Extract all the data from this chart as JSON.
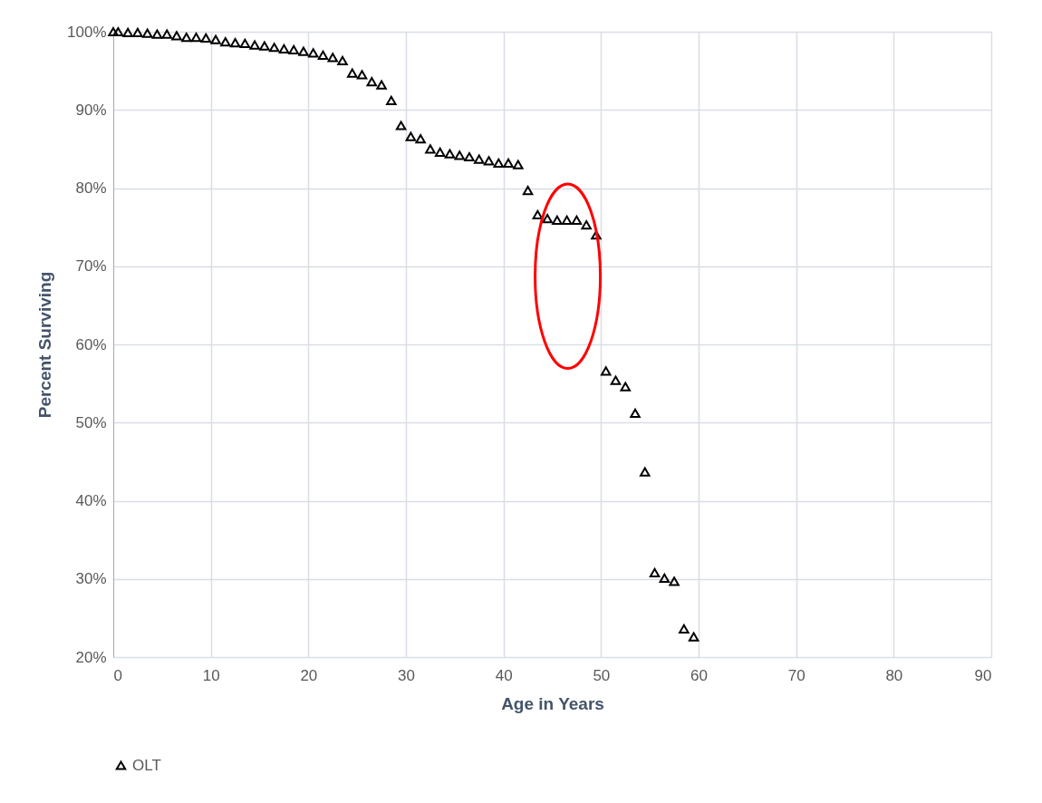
{
  "chart_data": {
    "type": "scatter",
    "xlabel": "Age in Years",
    "ylabel": "Percent Surviving",
    "x": [
      0,
      0.5,
      1.5,
      2.5,
      3.5,
      4.5,
      5.5,
      6.5,
      7.5,
      8.5,
      9.5,
      10.5,
      11.5,
      12.5,
      13.5,
      14.5,
      15.5,
      16.5,
      17.5,
      18.5,
      19.5,
      20.5,
      21.5,
      22.5,
      23.5,
      24.5,
      25.5,
      26.5,
      27.5,
      28.5,
      29.5,
      30.5,
      31.5,
      32.5,
      33.5,
      34.5,
      35.5,
      36.5,
      37.5,
      38.5,
      39.5,
      40.5,
      41.5,
      42.5,
      43.5,
      44.5,
      45.5,
      46.5,
      47.5,
      48.5,
      49.5,
      50.5,
      51.5,
      52.5,
      53.5,
      54.5,
      55.5,
      56.5,
      57.5,
      58.5,
      59.5
    ],
    "series": [
      {
        "name": "OLT",
        "color": "#000000",
        "values": [
          100,
          100,
          99.9,
          99.9,
          99.8,
          99.7,
          99.7,
          99.5,
          99.3,
          99.3,
          99.2,
          99.0,
          98.7,
          98.6,
          98.5,
          98.3,
          98.2,
          98.0,
          97.8,
          97.7,
          97.5,
          97.3,
          97.0,
          96.7,
          96.3,
          94.7,
          94.5,
          93.6,
          93.2,
          91.2,
          88.0,
          86.6,
          86.3,
          85.0,
          84.6,
          84.4,
          84.2,
          84.0,
          83.7,
          83.5,
          83.2,
          83.2,
          83.0,
          79.7,
          76.6,
          76.1,
          75.9,
          75.9,
          75.9,
          75.3,
          74.0,
          56.6,
          55.4,
          54.6,
          51.2,
          43.7,
          30.8,
          30.1,
          29.7,
          23.6,
          22.6
        ]
      }
    ],
    "xlim": [
      0,
      90
    ],
    "xticks": [
      0,
      10,
      20,
      30,
      40,
      50,
      60,
      70,
      80,
      90
    ],
    "ylim": [
      20,
      100
    ],
    "yticks": [
      {
        "value": 20,
        "label": "20%"
      },
      {
        "value": 30,
        "label": "30%"
      },
      {
        "value": 40,
        "label": "40%"
      },
      {
        "value": 50,
        "label": "50%"
      },
      {
        "value": 60,
        "label": "60%"
      },
      {
        "value": 70,
        "label": "70%"
      },
      {
        "value": 80,
        "label": "80%"
      },
      {
        "value": 90,
        "label": "90%"
      },
      {
        "value": 100,
        "label": "100%"
      }
    ],
    "grid": true,
    "legend": "bottom",
    "marker": "triangle"
  }
}
